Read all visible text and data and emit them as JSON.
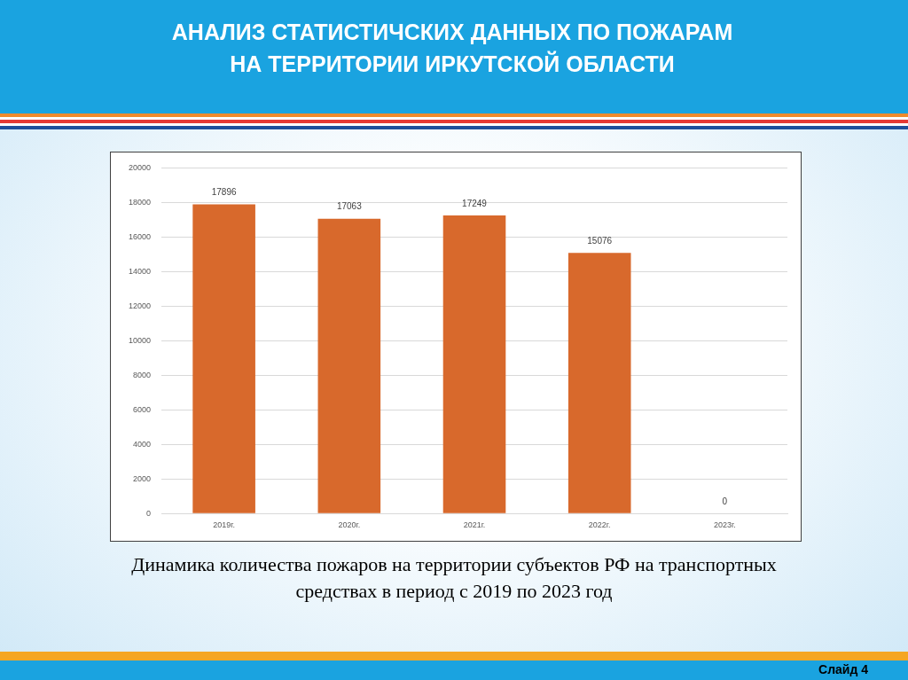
{
  "chart_data": {
    "type": "bar",
    "title": "АНАЛИЗ СТАТИСТИЧСКИХ ДАННЫХ  ПО ПОЖАРАМ НА ТЕРРИТОРИИ  ИРКУТСКОЙ ОБЛАСТИ",
    "categories": [
      "2019г.",
      "2020г.",
      "2021г.",
      "2022г.",
      "2023г."
    ],
    "values": [
      17896,
      17063,
      17249,
      15076,
      0
    ],
    "color": "#d8692c",
    "ylim": [
      0,
      20000
    ],
    "yticks": [
      0,
      2000,
      4000,
      6000,
      8000,
      10000,
      12000,
      14000,
      16000,
      18000,
      20000
    ],
    "grid": "y",
    "legend": false,
    "data_labels": true,
    "annotations": [
      "Динамика количества пожаров на территории субъектов РФ на транспортных средствах в период с 2019 по 2023 год",
      "Слайд 4"
    ]
  }
}
